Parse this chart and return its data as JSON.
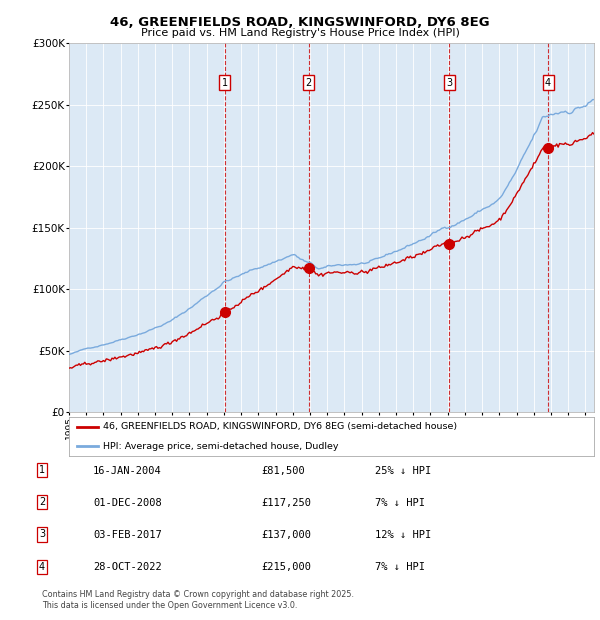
{
  "title1": "46, GREENFIELDS ROAD, KINGSWINFORD, DY6 8EG",
  "title2": "Price paid vs. HM Land Registry's House Price Index (HPI)",
  "bg_color": "#dce9f5",
  "red_line_color": "#cc0000",
  "blue_line_color": "#7aaadd",
  "vline_dates": [
    2004.04,
    2008.92,
    2017.09,
    2022.83
  ],
  "sale_prices": [
    81500,
    117250,
    137000,
    215000
  ],
  "sale_labels": [
    "1",
    "2",
    "3",
    "4"
  ],
  "ylim": [
    0,
    300000
  ],
  "xlim": [
    1995.0,
    2025.5
  ],
  "yticks": [
    0,
    50000,
    100000,
    150000,
    200000,
    250000,
    300000
  ],
  "ytick_labels": [
    "£0",
    "£50K",
    "£100K",
    "£150K",
    "£200K",
    "£250K",
    "£300K"
  ],
  "xticks": [
    1995,
    1996,
    1997,
    1998,
    1999,
    2000,
    2001,
    2002,
    2003,
    2004,
    2005,
    2006,
    2007,
    2008,
    2009,
    2010,
    2011,
    2012,
    2013,
    2014,
    2015,
    2016,
    2017,
    2018,
    2019,
    2020,
    2021,
    2022,
    2023,
    2024,
    2025
  ],
  "legend_red": "46, GREENFIELDS ROAD, KINGSWINFORD, DY6 8EG (semi-detached house)",
  "legend_blue": "HPI: Average price, semi-detached house, Dudley",
  "table_rows": [
    {
      "num": "1",
      "date": "16-JAN-2004",
      "price": "£81,500",
      "pct": "25% ↓ HPI"
    },
    {
      "num": "2",
      "date": "01-DEC-2008",
      "price": "£117,250",
      "pct": "7% ↓ HPI"
    },
    {
      "num": "3",
      "date": "03-FEB-2017",
      "price": "£137,000",
      "pct": "12% ↓ HPI"
    },
    {
      "num": "4",
      "date": "28-OCT-2022",
      "price": "£215,000",
      "pct": "7% ↓ HPI"
    }
  ],
  "footnote1": "Contains HM Land Registry data © Crown copyright and database right 2025.",
  "footnote2": "This data is licensed under the Open Government Licence v3.0."
}
